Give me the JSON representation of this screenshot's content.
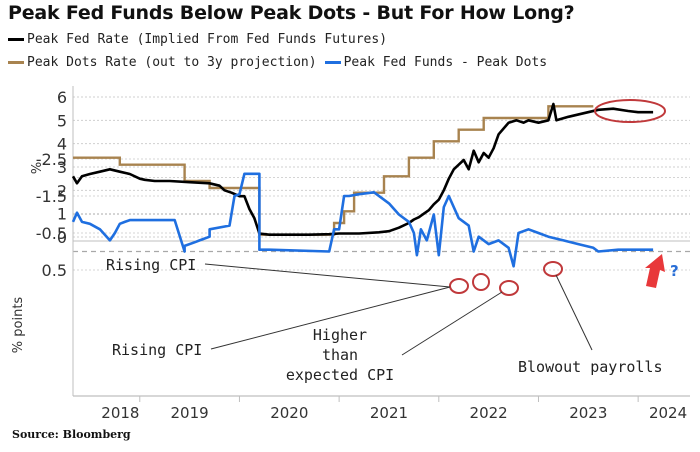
{
  "chart_data": [
    {
      "type": "line",
      "panel": "top",
      "title": "Peak Fed Funds Below Peak Dots - But For How Long?",
      "ylabel": "%",
      "xlabel": "",
      "ylim": [
        0,
        6
      ],
      "xlim": [
        2018.33,
        2024.45
      ],
      "yticks": [
        "0",
        "1",
        "2",
        "3",
        "4",
        "5",
        "6"
      ],
      "grid": true,
      "legend": "top-left",
      "series": [
        {
          "name": "Peak Fed Rate (Implied From Fed Funds Futures)",
          "color": "#000000",
          "x": [
            2018.33,
            2018.37,
            2018.42,
            2018.5,
            2018.6,
            2018.7,
            2018.8,
            2018.9,
            2019.0,
            2019.05,
            2019.15,
            2019.3,
            2019.5,
            2019.7,
            2019.8,
            2019.85,
            2019.92,
            2020.0,
            2020.05,
            2020.1,
            2020.15,
            2020.2,
            2020.3,
            2020.5,
            2020.7,
            2020.9,
            2021.0,
            2021.2,
            2021.4,
            2021.5,
            2021.6,
            2021.7,
            2021.75,
            2021.8,
            2021.85,
            2021.9,
            2021.95,
            2022.0,
            2022.05,
            2022.1,
            2022.15,
            2022.2,
            2022.25,
            2022.3,
            2022.35,
            2022.4,
            2022.45,
            2022.5,
            2022.55,
            2022.6,
            2022.7,
            2022.78,
            2022.85,
            2022.9,
            2023.0,
            2023.1,
            2023.15,
            2023.18,
            2023.3,
            2023.45,
            2023.6,
            2023.75,
            2023.9,
            2024.0,
            2024.15
          ],
          "values": [
            2.6,
            2.3,
            2.6,
            2.7,
            2.8,
            2.9,
            2.8,
            2.7,
            2.5,
            2.45,
            2.4,
            2.4,
            2.35,
            2.3,
            2.2,
            2.0,
            1.9,
            1.75,
            1.75,
            1.2,
            0.8,
            0.15,
            0.1,
            0.1,
            0.1,
            0.12,
            0.15,
            0.15,
            0.2,
            0.25,
            0.4,
            0.6,
            0.75,
            0.85,
            1.0,
            1.15,
            1.4,
            1.6,
            2.0,
            2.5,
            2.9,
            3.1,
            3.3,
            2.9,
            3.7,
            3.2,
            3.6,
            3.4,
            3.8,
            4.4,
            4.9,
            5.0,
            4.9,
            5.0,
            4.9,
            5.0,
            5.7,
            5.0,
            5.15,
            5.3,
            5.45,
            5.5,
            5.4,
            5.35,
            5.35
          ]
        },
        {
          "name": "Peak Dots Rate (out to 3y projection)",
          "color": "#A8834F",
          "x": [
            2018.33,
            2018.8,
            2018.8,
            2019.45,
            2019.45,
            2019.7,
            2019.7,
            2020.2,
            2020.2,
            2020.95,
            2020.95,
            2021.05,
            2021.05,
            2021.15,
            2021.15,
            2021.45,
            2021.45,
            2021.7,
            2021.7,
            2021.95,
            2021.95,
            2022.2,
            2022.2,
            2022.45,
            2022.45,
            2022.6,
            2022.6,
            2022.75,
            2022.75,
            2023.1,
            2023.1,
            2023.55,
            2023.55
          ],
          "values": [
            3.4,
            3.4,
            3.1,
            3.1,
            2.4,
            2.4,
            2.1,
            2.1,
            0.1,
            0.1,
            0.6,
            0.6,
            1.1,
            1.1,
            1.9,
            1.9,
            2.6,
            2.6,
            3.4,
            3.4,
            4.1,
            4.1,
            4.6,
            4.6,
            5.1,
            5.1,
            5.1,
            5.1,
            5.1,
            5.1,
            5.6,
            5.6,
            5.6
          ]
        }
      ],
      "annotations": [
        {
          "type": "ellipse",
          "color": "#C0393B",
          "note": "flat peak rate around 2023.6-2024.2"
        }
      ]
    },
    {
      "type": "line",
      "panel": "bottom",
      "ylabel": "% points",
      "ylim": [
        -2.9,
        0.9
      ],
      "xlim": [
        2018.33,
        2024.45
      ],
      "yticks": [
        "0.5",
        "-0.5",
        "-1.5",
        "-2.5"
      ],
      "xticks": [
        "2018",
        "2019",
        "2020",
        "2021",
        "2022",
        "2023",
        "2024"
      ],
      "grid": true,
      "series": [
        {
          "name": "Peak Fed Funds - Peak Dots",
          "color": "#1F6FE0",
          "x": [
            2018.33,
            2018.37,
            2018.42,
            2018.5,
            2018.6,
            2018.7,
            2018.75,
            2018.8,
            2018.85,
            2018.9,
            2019.0,
            2019.2,
            2019.35,
            2019.45,
            2019.45,
            2019.55,
            2019.6,
            2019.7,
            2019.7,
            2019.9,
            2019.95,
            2020.0,
            2020.05,
            2020.2,
            2020.2,
            2020.3,
            2020.9,
            2020.95,
            2021.0,
            2021.05,
            2021.1,
            2021.2,
            2021.35,
            2021.5,
            2021.6,
            2021.7,
            2021.75,
            2021.78,
            2021.82,
            2021.88,
            2021.95,
            2022.0,
            2022.05,
            2022.1,
            2022.2,
            2022.3,
            2022.35,
            2022.4,
            2022.5,
            2022.6,
            2022.7,
            2022.75,
            2022.8,
            2022.9,
            2023.0,
            2023.1,
            2023.25,
            2023.4,
            2023.55,
            2023.6,
            2023.8,
            2024.0,
            2024.15
          ],
          "values": [
            -0.8,
            -1.05,
            -0.8,
            -0.75,
            -0.6,
            -0.3,
            -0.5,
            -0.75,
            -0.8,
            -0.85,
            -0.85,
            -0.85,
            -0.85,
            0.0,
            -0.15,
            -0.25,
            -0.3,
            -0.4,
            -0.6,
            -0.7,
            -1.5,
            -1.55,
            -2.1,
            -2.1,
            -0.05,
            -0.05,
            0.0,
            -0.6,
            -0.6,
            -1.5,
            -1.5,
            -1.55,
            -1.6,
            -1.3,
            -1.0,
            -0.8,
            -0.5,
            0.1,
            -0.6,
            -0.3,
            -1.0,
            0.1,
            -1.2,
            -1.5,
            -0.9,
            -0.7,
            0.0,
            -0.4,
            -0.2,
            -0.3,
            -0.1,
            0.4,
            -0.5,
            -0.6,
            -0.5,
            -0.4,
            -0.3,
            -0.2,
            -0.1,
            0.0,
            -0.05,
            -0.05,
            -0.05
          ]
        }
      ],
      "annotations": [
        {
          "text": "Rising CPI",
          "position": "upper-left",
          "points_to": 2021.8
        },
        {
          "text": "Rising CPI",
          "position": "lower-left",
          "points_to": 2021.8
        },
        {
          "text": "Higher than expected CPI",
          "points_to": 2022.3
        },
        {
          "text": "Blowout payrolls",
          "points_to": 2022.75
        },
        {
          "text": "?",
          "note": "red arrow pointing up at right edge"
        }
      ]
    }
  ],
  "title": "Peak Fed Funds Below Peak Dots - But For How Long?",
  "legend": {
    "items": [
      {
        "label": "Peak Fed Rate (Implied From Fed Funds Futures)",
        "color": "#000000"
      },
      {
        "label": "Peak Dots Rate (out to 3y projection)",
        "color": "#A8834F"
      },
      {
        "label": "Peak Fed Funds - Peak Dots",
        "color": "#1F6FE0"
      }
    ]
  },
  "axes": {
    "top_ylabel": "%",
    "bottom_ylabel": "% points",
    "top_yticks": [
      "6",
      "5",
      "4",
      "3",
      "2",
      "1",
      "0"
    ],
    "bottom_yticks": [
      "0.5",
      "-0.5",
      "-1.5",
      "-2.5"
    ],
    "years": [
      "2018",
      "2019",
      "2020",
      "2021",
      "2022",
      "2023",
      "2024"
    ]
  },
  "annotations": {
    "rising_cpi_1": "Rising CPI",
    "rising_cpi_2": "Rising CPI",
    "higher_1": "Higher",
    "higher_2": "than",
    "higher_3": "expected CPI",
    "blowout": "Blowout payrolls",
    "question": "?"
  },
  "source": "Source: Bloomberg",
  "colors": {
    "fed_rate": "#000000",
    "dots": "#A8834F",
    "spread": "#1F6FE0",
    "highlight": "#C0393B",
    "arrow": "#E8383A",
    "grid": "#C8C8C8"
  }
}
